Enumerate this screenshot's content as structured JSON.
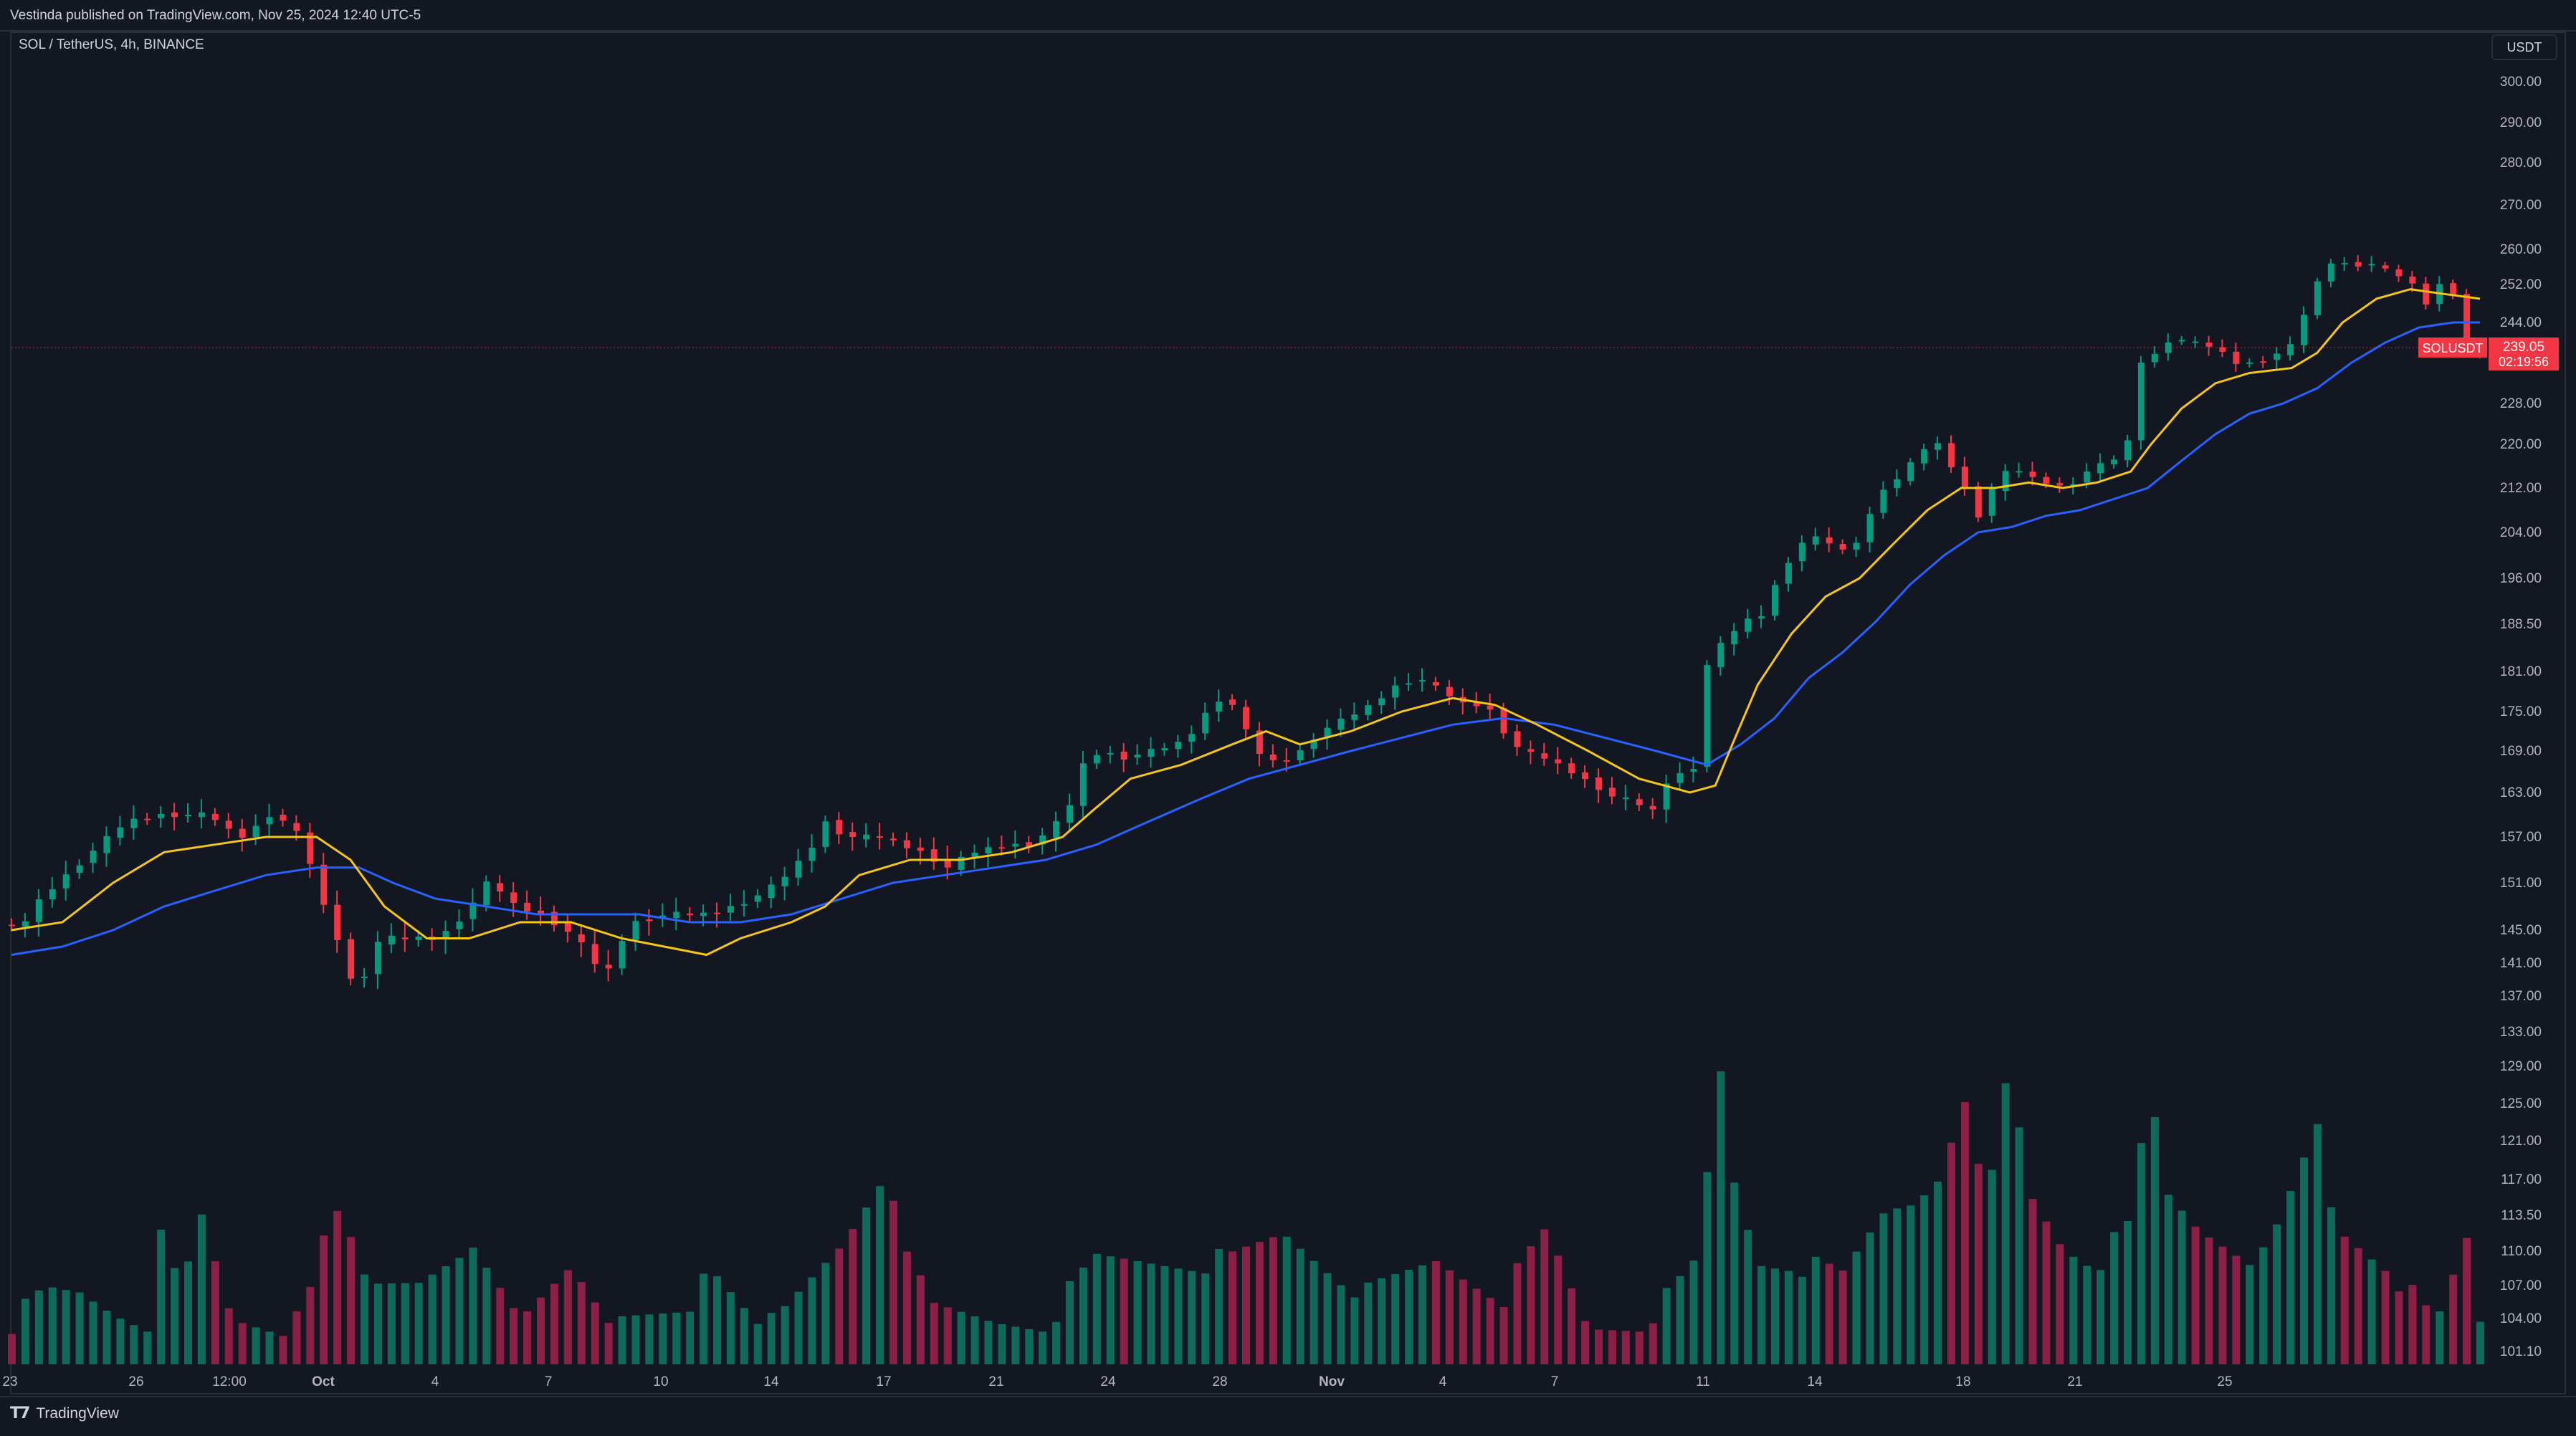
{
  "header": {
    "publish_line": "Vestinda published on TradingView.com, Nov 25, 2024 12:40 UTC-5"
  },
  "legend": {
    "symbol_line": "SOL / TetherUS, 4h, BINANCE"
  },
  "currency_button": {
    "label": "USDT"
  },
  "footer": {
    "brand": "TradingView",
    "brand_icon": "tradingview-logo-icon"
  },
  "colors": {
    "background": "#131722",
    "up": "#089981",
    "down": "#f23645",
    "ema_fast": "#f5c518",
    "ema_slow": "#2962ff",
    "price_tag": "#f23645",
    "volume_up": "#0e6b5c",
    "volume_down": "#8c1f45"
  },
  "chart_data": {
    "type": "candlestick",
    "title": "SOL / TetherUS, 4h, BINANCE",
    "timeframe": "4h",
    "ylim": [
      99,
      305
    ],
    "y_ticks": [
      "300.00",
      "290.00",
      "280.00",
      "270.00",
      "260.00",
      "252.00",
      "244.00",
      "228.00",
      "220.00",
      "212.00",
      "204.00",
      "196.00",
      "188.50",
      "181.00",
      "175.00",
      "169.00",
      "163.00",
      "157.00",
      "151.00",
      "145.00",
      "141.00",
      "137.00",
      "133.00",
      "129.00",
      "125.00",
      "121.00",
      "117.00",
      "113.50",
      "110.00",
      "107.00",
      "104.00",
      "101.10"
    ],
    "x_ticks": [
      "23",
      "26",
      "12:00",
      "Oct",
      "4",
      "7",
      "10",
      "14",
      "17",
      "21",
      "24",
      "28",
      "Nov",
      "4",
      "7",
      "11",
      "14",
      "18",
      "21",
      "25"
    ],
    "price_label": {
      "symbol": "SOLUSDT",
      "price": "239.05",
      "countdown": "02:19:56",
      "value": 239.05
    },
    "series": [
      {
        "name": "Price (approx. closes)",
        "points": [
          [
            0,
            146
          ],
          [
            12,
            145
          ],
          [
            25,
            149
          ],
          [
            40,
            152
          ],
          [
            55,
            155
          ],
          [
            75,
            159
          ],
          [
            95,
            160
          ],
          [
            112,
            160
          ],
          [
            125,
            160
          ],
          [
            135,
            158
          ],
          [
            145,
            157
          ],
          [
            160,
            160
          ],
          [
            170,
            159
          ],
          [
            178,
            157
          ],
          [
            185,
            153
          ],
          [
            192,
            148
          ],
          [
            200,
            144
          ],
          [
            206,
            140
          ],
          [
            212,
            137
          ],
          [
            218,
            141
          ],
          [
            225,
            144
          ],
          [
            240,
            144
          ],
          [
            260,
            144
          ],
          [
            275,
            147
          ],
          [
            285,
            150
          ],
          [
            292,
            152
          ],
          [
            298,
            149
          ],
          [
            306,
            148
          ],
          [
            320,
            147
          ],
          [
            335,
            145
          ],
          [
            345,
            143
          ],
          [
            352,
            141
          ],
          [
            358,
            139
          ],
          [
            365,
            143
          ],
          [
            375,
            146
          ],
          [
            395,
            147
          ],
          [
            420,
            147
          ],
          [
            445,
            149
          ],
          [
            460,
            151
          ],
          [
            478,
            155
          ],
          [
            488,
            159
          ],
          [
            500,
            157
          ],
          [
            520,
            157
          ],
          [
            545,
            155
          ],
          [
            560,
            153
          ],
          [
            575,
            155
          ],
          [
            595,
            156
          ],
          [
            610,
            156
          ],
          [
            620,
            158
          ],
          [
            630,
            160
          ],
          [
            640,
            167
          ],
          [
            650,
            169
          ],
          [
            665,
            168
          ],
          [
            680,
            169
          ],
          [
            695,
            170
          ],
          [
            705,
            172
          ],
          [
            718,
            177
          ],
          [
            728,
            176
          ],
          [
            742,
            169
          ],
          [
            755,
            167
          ],
          [
            768,
            169
          ],
          [
            780,
            172
          ],
          [
            795,
            174
          ],
          [
            810,
            176
          ],
          [
            825,
            179
          ],
          [
            838,
            180
          ],
          [
            852,
            178
          ],
          [
            865,
            176
          ],
          [
            878,
            176
          ],
          [
            888,
            172
          ],
          [
            898,
            169
          ],
          [
            912,
            168
          ],
          [
            928,
            166
          ],
          [
            942,
            164
          ],
          [
            955,
            162
          ],
          [
            965,
            162
          ],
          [
            975,
            160
          ],
          [
            985,
            165
          ],
          [
            995,
            166
          ],
          [
            1002,
            167
          ],
          [
            1008,
            182
          ],
          [
            1018,
            186
          ],
          [
            1030,
            189
          ],
          [
            1040,
            190
          ],
          [
            1050,
            196
          ],
          [
            1062,
            202
          ],
          [
            1072,
            203
          ],
          [
            1082,
            202
          ],
          [
            1092,
            200
          ],
          [
            1102,
            206
          ],
          [
            1112,
            212
          ],
          [
            1122,
            214
          ],
          [
            1132,
            218
          ],
          [
            1142,
            221
          ],
          [
            1152,
            216
          ],
          [
            1162,
            211
          ],
          [
            1168,
            207
          ],
          [
            1178,
            213
          ],
          [
            1188,
            216
          ],
          [
            1198,
            214
          ],
          [
            1208,
            213
          ],
          [
            1220,
            212
          ],
          [
            1232,
            215
          ],
          [
            1245,
            217
          ],
          [
            1255,
            218
          ],
          [
            1262,
            236
          ],
          [
            1270,
            237
          ],
          [
            1282,
            241
          ],
          [
            1295,
            240
          ],
          [
            1308,
            239
          ],
          [
            1320,
            236
          ],
          [
            1332,
            236
          ],
          [
            1345,
            238
          ],
          [
            1355,
            240
          ],
          [
            1362,
            248
          ],
          [
            1370,
            254
          ],
          [
            1378,
            258
          ],
          [
            1388,
            256
          ],
          [
            1398,
            257
          ],
          [
            1410,
            255
          ],
          [
            1422,
            253
          ],
          [
            1432,
            248
          ],
          [
            1440,
            252
          ],
          [
            1448,
            250
          ],
          [
            1456,
            239
          ]
        ]
      },
      {
        "name": "EMA fast",
        "points": [
          [
            0,
            145
          ],
          [
            30,
            146
          ],
          [
            60,
            151
          ],
          [
            90,
            155
          ],
          [
            120,
            156
          ],
          [
            150,
            157
          ],
          [
            180,
            157
          ],
          [
            200,
            154
          ],
          [
            220,
            148
          ],
          [
            245,
            144
          ],
          [
            270,
            144
          ],
          [
            300,
            146
          ],
          [
            330,
            146
          ],
          [
            360,
            144
          ],
          [
            385,
            143
          ],
          [
            410,
            142
          ],
          [
            430,
            144
          ],
          [
            460,
            146
          ],
          [
            480,
            148
          ],
          [
            500,
            152
          ],
          [
            530,
            154
          ],
          [
            560,
            154
          ],
          [
            590,
            155
          ],
          [
            620,
            157
          ],
          [
            640,
            161
          ],
          [
            660,
            165
          ],
          [
            690,
            167
          ],
          [
            720,
            170
          ],
          [
            740,
            172
          ],
          [
            760,
            170
          ],
          [
            790,
            172
          ],
          [
            820,
            175
          ],
          [
            850,
            177
          ],
          [
            875,
            176
          ],
          [
            900,
            173
          ],
          [
            930,
            169
          ],
          [
            960,
            165
          ],
          [
            990,
            163
          ],
          [
            1005,
            164
          ],
          [
            1015,
            170
          ],
          [
            1030,
            179
          ],
          [
            1050,
            187
          ],
          [
            1070,
            193
          ],
          [
            1090,
            196
          ],
          [
            1110,
            202
          ],
          [
            1130,
            208
          ],
          [
            1150,
            212
          ],
          [
            1170,
            212
          ],
          [
            1190,
            213
          ],
          [
            1210,
            212
          ],
          [
            1230,
            213
          ],
          [
            1250,
            215
          ],
          [
            1262,
            220
          ],
          [
            1280,
            227
          ],
          [
            1300,
            232
          ],
          [
            1320,
            234
          ],
          [
            1345,
            235
          ],
          [
            1360,
            238
          ],
          [
            1375,
            244
          ],
          [
            1395,
            249
          ],
          [
            1415,
            251
          ],
          [
            1435,
            250
          ],
          [
            1456,
            249
          ]
        ]
      },
      {
        "name": "EMA slow",
        "points": [
          [
            0,
            142
          ],
          [
            30,
            143
          ],
          [
            60,
            145
          ],
          [
            90,
            148
          ],
          [
            120,
            150
          ],
          [
            150,
            152
          ],
          [
            180,
            153
          ],
          [
            205,
            153
          ],
          [
            225,
            151
          ],
          [
            250,
            149
          ],
          [
            280,
            148
          ],
          [
            310,
            147
          ],
          [
            340,
            147
          ],
          [
            370,
            147
          ],
          [
            400,
            146
          ],
          [
            430,
            146
          ],
          [
            460,
            147
          ],
          [
            490,
            149
          ],
          [
            520,
            151
          ],
          [
            550,
            152
          ],
          [
            580,
            153
          ],
          [
            610,
            154
          ],
          [
            640,
            156
          ],
          [
            670,
            159
          ],
          [
            700,
            162
          ],
          [
            730,
            165
          ],
          [
            760,
            167
          ],
          [
            790,
            169
          ],
          [
            820,
            171
          ],
          [
            850,
            173
          ],
          [
            880,
            174
          ],
          [
            910,
            173
          ],
          [
            940,
            171
          ],
          [
            970,
            169
          ],
          [
            1000,
            167
          ],
          [
            1020,
            170
          ],
          [
            1040,
            174
          ],
          [
            1060,
            180
          ],
          [
            1080,
            184
          ],
          [
            1100,
            189
          ],
          [
            1120,
            195
          ],
          [
            1140,
            200
          ],
          [
            1160,
            204
          ],
          [
            1180,
            205
          ],
          [
            1200,
            207
          ],
          [
            1220,
            208
          ],
          [
            1240,
            210
          ],
          [
            1260,
            212
          ],
          [
            1280,
            217
          ],
          [
            1300,
            222
          ],
          [
            1320,
            226
          ],
          [
            1340,
            228
          ],
          [
            1360,
            231
          ],
          [
            1380,
            236
          ],
          [
            1400,
            240
          ],
          [
            1420,
            243
          ],
          [
            1440,
            244
          ],
          [
            1456,
            244
          ]
        ]
      }
    ],
    "volume": {
      "note": "relative heights (0-1) of volume bars, approximate",
      "samples": [
        [
          0,
          0.12
        ],
        [
          20,
          0.2
        ],
        [
          40,
          0.2
        ],
        [
          60,
          0.15
        ],
        [
          80,
          0.12
        ],
        [
          85,
          0.5
        ],
        [
          100,
          0.15
        ],
        [
          110,
          0.45
        ],
        [
          130,
          0.12
        ],
        [
          160,
          0.1
        ],
        [
          195,
          0.45
        ],
        [
          200,
          0.35
        ],
        [
          210,
          0.22
        ],
        [
          240,
          0.25
        ],
        [
          265,
          0.35
        ],
        [
          300,
          0.12
        ],
        [
          330,
          0.3
        ],
        [
          360,
          0.1
        ],
        [
          400,
          0.15
        ],
        [
          410,
          0.3
        ],
        [
          450,
          0.1
        ],
        [
          490,
          0.35
        ],
        [
          516,
          0.58
        ],
        [
          540,
          0.15
        ],
        [
          580,
          0.12
        ],
        [
          610,
          0.12
        ],
        [
          640,
          0.3
        ],
        [
          680,
          0.3
        ],
        [
          720,
          0.3
        ],
        [
          750,
          0.38
        ],
        [
          800,
          0.2
        ],
        [
          840,
          0.3
        ],
        [
          880,
          0.2
        ],
        [
          905,
          0.38
        ],
        [
          930,
          0.1
        ],
        [
          960,
          0.12
        ],
        [
          980,
          0.2
        ],
        [
          995,
          0.3
        ],
        [
          1007,
          0.9
        ],
        [
          1015,
          0.55
        ],
        [
          1030,
          0.3
        ],
        [
          1050,
          0.3
        ],
        [
          1080,
          0.25
        ],
        [
          1105,
          0.45
        ],
        [
          1120,
          0.48
        ],
        [
          1135,
          0.55
        ],
        [
          1150,
          0.78
        ],
        [
          1165,
          0.45
        ],
        [
          1178,
          0.88
        ],
        [
          1190,
          0.5
        ],
        [
          1210,
          0.35
        ],
        [
          1230,
          0.3
        ],
        [
          1250,
          0.4
        ],
        [
          1261,
          0.82
        ],
        [
          1270,
          0.5
        ],
        [
          1290,
          0.4
        ],
        [
          1310,
          0.35
        ],
        [
          1330,
          0.3
        ],
        [
          1360,
          0.7
        ],
        [
          1370,
          0.4
        ],
        [
          1400,
          0.3
        ],
        [
          1430,
          0.1
        ],
        [
          1452,
          0.42
        ],
        [
          1456,
          0.12
        ]
      ]
    },
    "grid": false,
    "legend_position": "top-left"
  }
}
